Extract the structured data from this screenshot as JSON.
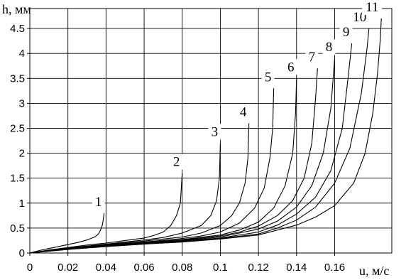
{
  "chart_data": {
    "type": "line",
    "xlabel": "u, м/с",
    "ylabel": "h, мм",
    "xlim": [
      0,
      0.19
    ],
    "ylim": [
      0,
      4.9
    ],
    "grid": true,
    "x_ticks": [
      "0",
      "0.02",
      "0.04",
      "0.06",
      "0.08",
      "0.1",
      "0.12",
      "0.14",
      "0.16"
    ],
    "y_ticks": [
      "0",
      "0.5",
      "1",
      "1.5",
      "2",
      "2.5",
      "3",
      "3.5",
      "4",
      "4.5"
    ],
    "series": [
      {
        "name": "1",
        "values": [
          [
            0,
            0
          ],
          [
            0.005,
            0.05
          ],
          [
            0.01,
            0.09
          ],
          [
            0.015,
            0.13
          ],
          [
            0.02,
            0.17
          ],
          [
            0.025,
            0.21
          ],
          [
            0.03,
            0.26
          ],
          [
            0.034,
            0.32
          ],
          [
            0.036,
            0.38
          ],
          [
            0.037,
            0.45
          ],
          [
            0.038,
            0.55
          ],
          [
            0.0385,
            0.65
          ],
          [
            0.039,
            0.8
          ]
        ]
      },
      {
        "name": "2",
        "values": [
          [
            0,
            0
          ],
          [
            0.01,
            0.06
          ],
          [
            0.02,
            0.11
          ],
          [
            0.03,
            0.16
          ],
          [
            0.04,
            0.2
          ],
          [
            0.05,
            0.25
          ],
          [
            0.06,
            0.3
          ],
          [
            0.065,
            0.35
          ],
          [
            0.07,
            0.42
          ],
          [
            0.074,
            0.55
          ],
          [
            0.077,
            0.75
          ],
          [
            0.079,
            1.0
          ],
          [
            0.0795,
            1.3
          ],
          [
            0.08,
            1.6
          ]
        ]
      },
      {
        "name": "3",
        "values": [
          [
            0,
            0
          ],
          [
            0.02,
            0.1
          ],
          [
            0.04,
            0.18
          ],
          [
            0.06,
            0.26
          ],
          [
            0.07,
            0.31
          ],
          [
            0.08,
            0.4
          ],
          [
            0.09,
            0.55
          ],
          [
            0.095,
            0.75
          ],
          [
            0.098,
            1.05
          ],
          [
            0.0995,
            1.5
          ],
          [
            0.1,
            2.2
          ]
        ]
      },
      {
        "name": "4",
        "values": [
          [
            0,
            0
          ],
          [
            0.02,
            0.1
          ],
          [
            0.04,
            0.17
          ],
          [
            0.06,
            0.24
          ],
          [
            0.08,
            0.32
          ],
          [
            0.09,
            0.4
          ],
          [
            0.1,
            0.55
          ],
          [
            0.106,
            0.75
          ],
          [
            0.11,
            1.0
          ],
          [
            0.113,
            1.4
          ],
          [
            0.1145,
            1.9
          ],
          [
            0.115,
            2.6
          ]
        ]
      },
      {
        "name": "5",
        "values": [
          [
            0,
            0
          ],
          [
            0.02,
            0.09
          ],
          [
            0.04,
            0.16
          ],
          [
            0.06,
            0.22
          ],
          [
            0.08,
            0.29
          ],
          [
            0.09,
            0.34
          ],
          [
            0.1,
            0.42
          ],
          [
            0.11,
            0.6
          ],
          [
            0.118,
            0.9
          ],
          [
            0.123,
            1.3
          ],
          [
            0.126,
            1.9
          ],
          [
            0.1275,
            2.5
          ],
          [
            0.128,
            3.3
          ]
        ]
      },
      {
        "name": "6",
        "values": [
          [
            0,
            0
          ],
          [
            0.02,
            0.09
          ],
          [
            0.04,
            0.15
          ],
          [
            0.06,
            0.21
          ],
          [
            0.08,
            0.27
          ],
          [
            0.1,
            0.36
          ],
          [
            0.11,
            0.46
          ],
          [
            0.12,
            0.62
          ],
          [
            0.128,
            0.9
          ],
          [
            0.134,
            1.35
          ],
          [
            0.138,
            2.0
          ],
          [
            0.1395,
            2.8
          ],
          [
            0.14,
            3.5
          ]
        ]
      },
      {
        "name": "7",
        "values": [
          [
            0,
            0
          ],
          [
            0.02,
            0.08
          ],
          [
            0.04,
            0.15
          ],
          [
            0.06,
            0.2
          ],
          [
            0.08,
            0.26
          ],
          [
            0.1,
            0.34
          ],
          [
            0.11,
            0.42
          ],
          [
            0.12,
            0.54
          ],
          [
            0.13,
            0.75
          ],
          [
            0.138,
            1.05
          ],
          [
            0.144,
            1.5
          ],
          [
            0.148,
            2.2
          ],
          [
            0.15,
            3.1
          ],
          [
            0.151,
            3.7
          ]
        ]
      },
      {
        "name": "8",
        "values": [
          [
            0,
            0
          ],
          [
            0.02,
            0.08
          ],
          [
            0.04,
            0.14
          ],
          [
            0.06,
            0.2
          ],
          [
            0.08,
            0.25
          ],
          [
            0.1,
            0.32
          ],
          [
            0.12,
            0.48
          ],
          [
            0.13,
            0.64
          ],
          [
            0.14,
            0.92
          ],
          [
            0.148,
            1.35
          ],
          [
            0.154,
            2.0
          ],
          [
            0.158,
            2.9
          ],
          [
            0.16,
            3.9
          ]
        ]
      },
      {
        "name": "9",
        "values": [
          [
            0,
            0
          ],
          [
            0.02,
            0.08
          ],
          [
            0.04,
            0.14
          ],
          [
            0.06,
            0.19
          ],
          [
            0.08,
            0.24
          ],
          [
            0.1,
            0.3
          ],
          [
            0.12,
            0.42
          ],
          [
            0.13,
            0.56
          ],
          [
            0.14,
            0.78
          ],
          [
            0.15,
            1.12
          ],
          [
            0.158,
            1.65
          ],
          [
            0.164,
            2.5
          ],
          [
            0.167,
            3.5
          ],
          [
            0.169,
            4.2
          ]
        ]
      },
      {
        "name": "10",
        "values": [
          [
            0,
            0
          ],
          [
            0.02,
            0.08
          ],
          [
            0.04,
            0.13
          ],
          [
            0.06,
            0.18
          ],
          [
            0.08,
            0.23
          ],
          [
            0.1,
            0.29
          ],
          [
            0.12,
            0.38
          ],
          [
            0.13,
            0.5
          ],
          [
            0.14,
            0.66
          ],
          [
            0.15,
            0.92
          ],
          [
            0.16,
            1.4
          ],
          [
            0.168,
            2.1
          ],
          [
            0.174,
            3.2
          ],
          [
            0.177,
            4.1
          ],
          [
            0.178,
            4.5
          ]
        ]
      },
      {
        "name": "11",
        "values": [
          [
            0,
            0
          ],
          [
            0.02,
            0.07
          ],
          [
            0.04,
            0.13
          ],
          [
            0.06,
            0.18
          ],
          [
            0.08,
            0.22
          ],
          [
            0.1,
            0.28
          ],
          [
            0.12,
            0.36
          ],
          [
            0.14,
            0.56
          ],
          [
            0.15,
            0.72
          ],
          [
            0.16,
            0.95
          ],
          [
            0.17,
            1.4
          ],
          [
            0.176,
            2.0
          ],
          [
            0.18,
            2.8
          ],
          [
            0.1825,
            3.6
          ],
          [
            0.184,
            4.3
          ],
          [
            0.1845,
            4.7
          ]
        ]
      }
    ]
  }
}
